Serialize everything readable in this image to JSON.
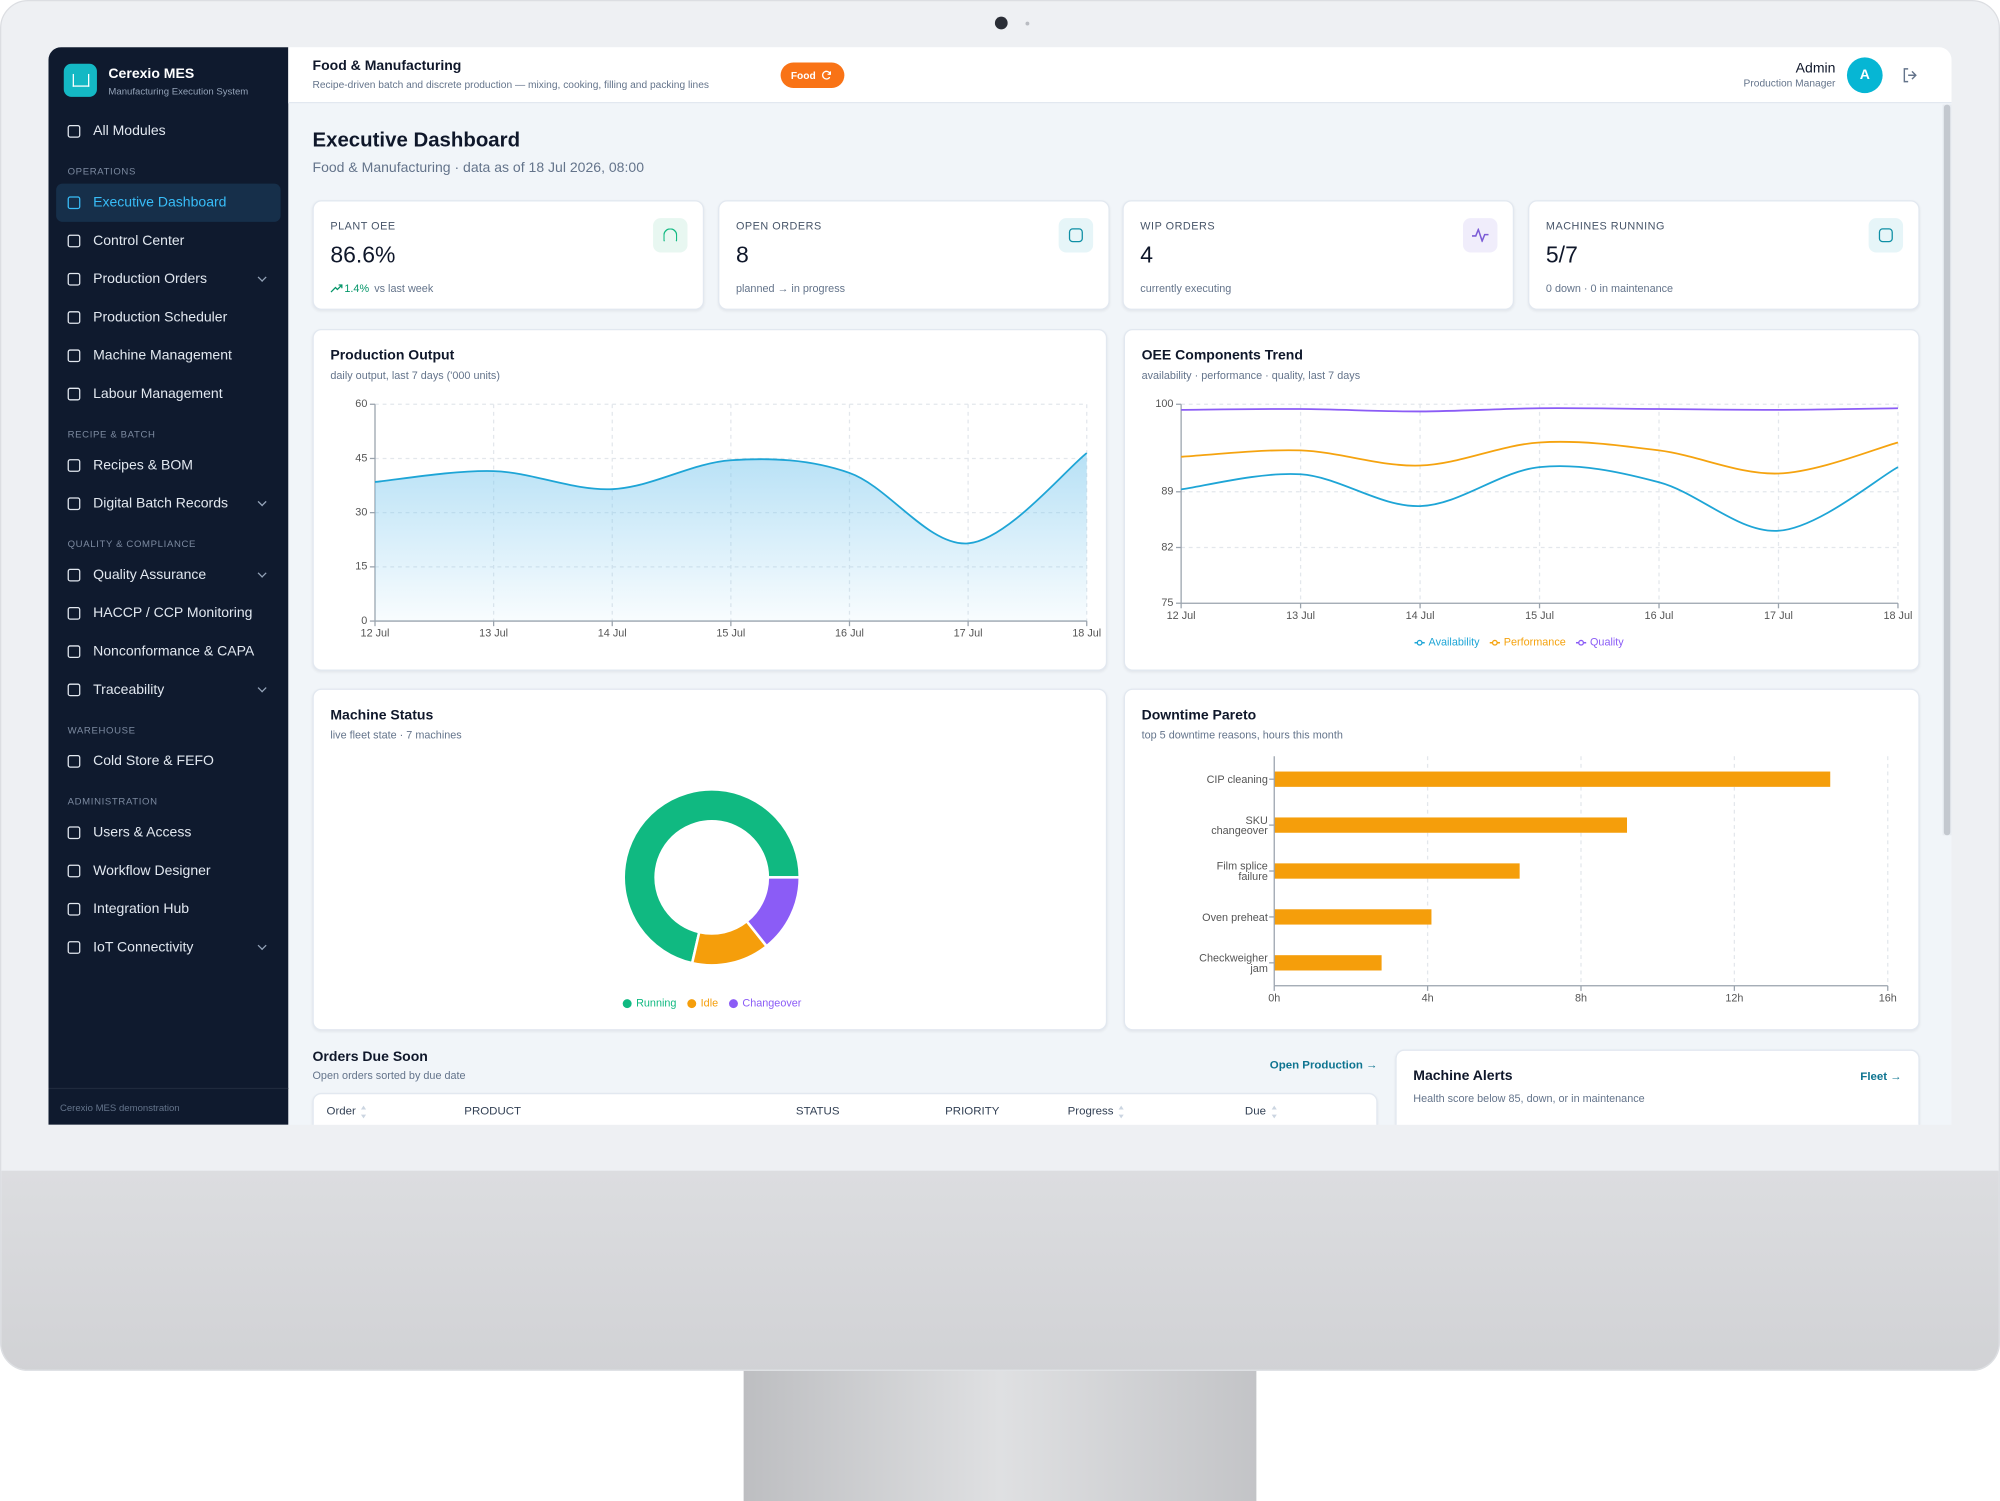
{
  "brand": {
    "name": "Cerexio MES",
    "tagline": "Manufacturing Execution System"
  },
  "sidebar": {
    "top": "All Modules",
    "sections": [
      {
        "title": "OPERATIONS",
        "items": [
          "Executive Dashboard",
          "Control Center",
          "Production Orders",
          "Production Scheduler",
          "Machine Management",
          "Labour Management"
        ]
      },
      {
        "title": "RECIPE & BATCH",
        "items": [
          "Recipes & BOM",
          "Digital Batch Records"
        ]
      },
      {
        "title": "QUALITY & COMPLIANCE",
        "items": [
          "Quality Assurance",
          "HACCP / CCP Monitoring",
          "Nonconformance & CAPA",
          "Traceability"
        ]
      },
      {
        "title": "WAREHOUSE",
        "items": [
          "Cold Store & FEFO"
        ]
      },
      {
        "title": "ADMINISTRATION",
        "items": [
          "Users & Access",
          "Workflow Designer",
          "Integration Hub",
          "IoT Connectivity"
        ]
      }
    ],
    "footer": "Cerexio MES demonstration"
  },
  "topbar": {
    "title": "Food & Manufacturing",
    "subtitle": "Recipe-driven batch and discrete production — mixing, cooking, filling and packing lines",
    "badge": "Food",
    "user": "Admin",
    "role": "Production Manager",
    "avatar": "A"
  },
  "header": {
    "title": "Executive Dashboard",
    "subtitle": "Food & Manufacturing · data as of 18 Jul 2026, 08:00"
  },
  "kpis": [
    {
      "label": "PLANT OEE",
      "value": "86.6%",
      "delta": "1.4%",
      "note": "vs last week"
    },
    {
      "label": "OPEN ORDERS",
      "value": "8",
      "note": "planned → in progress"
    },
    {
      "label": "WIP ORDERS",
      "value": "4",
      "note": "currently executing"
    },
    {
      "label": "MACHINES RUNNING",
      "value": "5/7",
      "note": "0 down · 0 in maintenance"
    }
  ],
  "chart_data": [
    {
      "type": "area",
      "title": "Production Output",
      "subtitle": "daily output, last 7 days ('000 units)",
      "categories": [
        "12 Jul",
        "13 Jul",
        "14 Jul",
        "15 Jul",
        "16 Jul",
        "17 Jul",
        "18 Jul"
      ],
      "values": [
        38.5,
        41.5,
        36.5,
        44.5,
        41,
        21.5,
        46.5
      ],
      "color": "#1ea5d6",
      "ylim": [
        0,
        60
      ],
      "yticks": [
        0,
        15,
        30,
        45,
        60
      ],
      "grid": true
    },
    {
      "type": "line",
      "title": "OEE Components Trend",
      "subtitle": "availability · performance · quality, last 7 days",
      "categories": [
        "12 Jul",
        "13 Jul",
        "14 Jul",
        "15 Jul",
        "16 Jul",
        "17 Jul",
        "18 Jul"
      ],
      "series": [
        {
          "name": "Availability",
          "color": "#1ea5d6",
          "values": [
            89.3,
            91.2,
            87.2,
            92.1,
            90.2,
            84.1,
            92.1
          ]
        },
        {
          "name": "Performance",
          "color": "#f5a30f",
          "values": [
            93.4,
            94.2,
            92.3,
            95.2,
            94.2,
            91.3,
            95.2
          ]
        },
        {
          "name": "Quality",
          "color": "#8b5cf6",
          "values": [
            99.3,
            99.4,
            99.1,
            99.5,
            99.4,
            99.3,
            99.5
          ]
        }
      ],
      "ylim": [
        75,
        100
      ],
      "yticks": [
        75,
        82,
        89,
        100
      ],
      "grid": true,
      "legend": "bottom"
    },
    {
      "type": "donut",
      "title": "Machine Status",
      "subtitle": "live fleet state · 7 machines",
      "categories": [
        "Running",
        "Idle",
        "Changeover"
      ],
      "values": [
        5,
        1,
        1
      ],
      "colors": [
        "#10b981",
        "#f59e0b",
        "#8b5cf6"
      ],
      "legend": "bottom"
    },
    {
      "type": "bar",
      "orientation": "horizontal",
      "title": "Downtime Pareto",
      "subtitle": "top 5 downtime reasons, hours this month",
      "categories": [
        "CIP cleaning",
        "SKU changeover",
        "Film splice failure",
        "Oven preheat",
        "Checkweigher jam"
      ],
      "values": [
        14.5,
        9.2,
        6.4,
        4.1,
        2.8
      ],
      "color": "#f59e0b",
      "xlim": [
        0,
        16
      ],
      "xticks": [
        {
          "value": 0,
          "label": "0h"
        },
        {
          "value": 4,
          "label": "4h"
        },
        {
          "value": 8,
          "label": "8h"
        },
        {
          "value": 12,
          "label": "12h"
        },
        {
          "value": 16,
          "label": "16h"
        }
      ],
      "grid": true
    }
  ],
  "orders": {
    "title": "Orders Due Soon",
    "subtitle": "Open orders sorted by due date",
    "link": "Open Production →",
    "columns": [
      {
        "label": "Order",
        "sortable": true
      },
      {
        "label": "PRODUCT",
        "sortable": false
      },
      {
        "label": "STATUS",
        "sortable": false
      },
      {
        "label": "PRIORITY",
        "sortable": false
      },
      {
        "label": "Progress",
        "sortable": true
      },
      {
        "label": "Due",
        "sortable": true
      }
    ]
  },
  "alerts": {
    "title": "Machine Alerts",
    "subtitle": "Health score below 85, down, or in maintenance",
    "link": "Fleet →"
  }
}
